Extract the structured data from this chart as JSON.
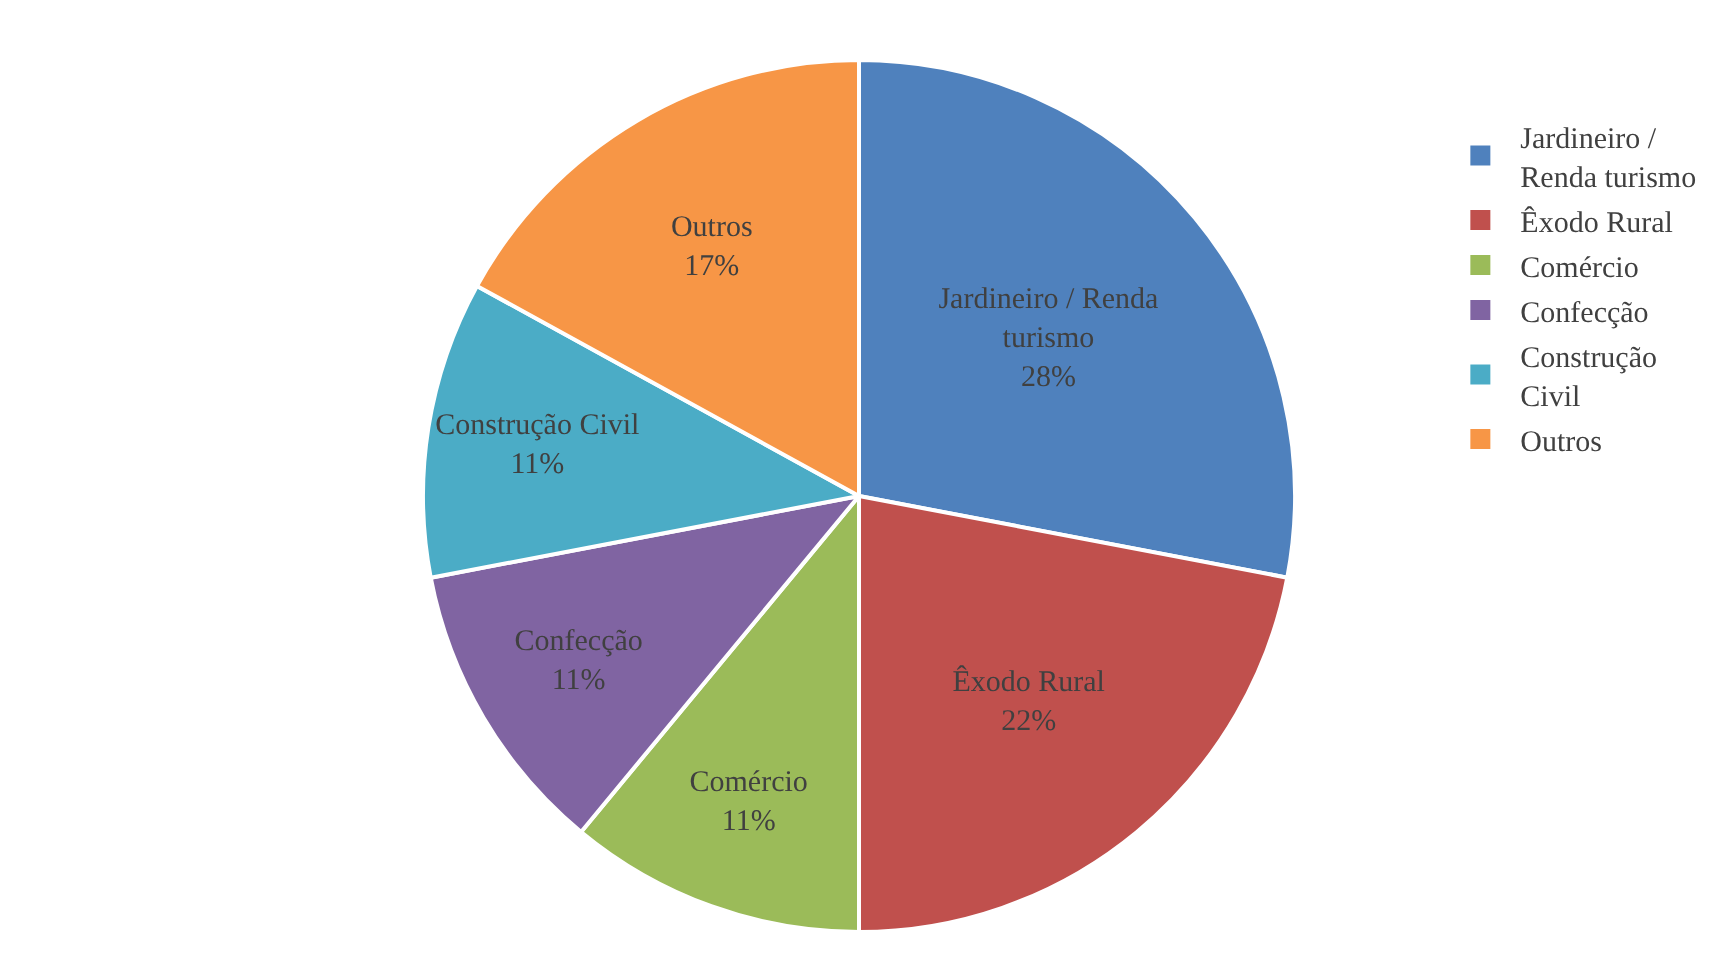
{
  "chart_data": {
    "type": "pie",
    "categories": [
      "Jardineiro / Renda turismo",
      "Êxodo Rural",
      "Comércio",
      "Confecção",
      "Construção Civil",
      "Outros"
    ],
    "values": [
      28,
      22,
      11,
      11,
      11,
      17
    ],
    "colors": [
      "#4f81bd",
      "#c0504d",
      "#9bbb59",
      "#8064a2",
      "#4bacc6",
      "#f79646"
    ],
    "value_labels": [
      "28%",
      "22%",
      "11%",
      "11%",
      "11%",
      "17%"
    ],
    "legend": "right"
  }
}
